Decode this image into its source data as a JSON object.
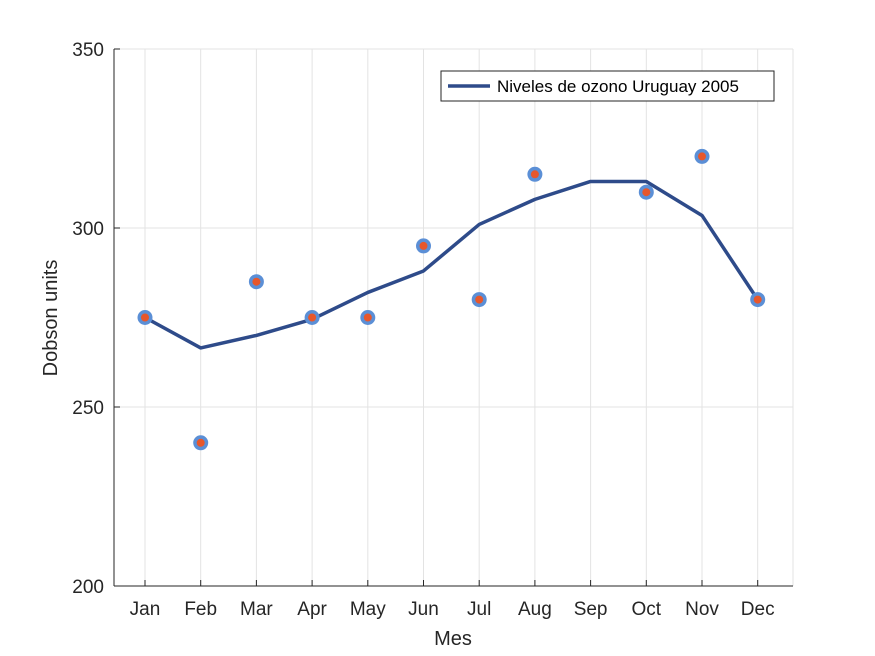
{
  "chart_data": {
    "type": "line",
    "xlabel": "Mes",
    "ylabel": "Dobson units",
    "categories": [
      "Jan",
      "Feb",
      "Mar",
      "Apr",
      "May",
      "Jun",
      "Jul",
      "Aug",
      "Sep",
      "Oct",
      "Nov",
      "Dec"
    ],
    "x_ticks": [
      "Jan",
      "Feb",
      "Mar",
      "Apr",
      "May",
      "Jun",
      "Jul",
      "Aug",
      "Sep",
      "Oct",
      "Nov",
      "Dec"
    ],
    "ylim": [
      200,
      350
    ],
    "yticks": [
      200,
      250,
      300,
      350
    ],
    "grid": true,
    "legend_position": "top-right",
    "series": [
      {
        "name": "Niveles de ozono Uruguay 2005",
        "kind": "line",
        "color": "#2e4b8a",
        "points": [
          {
            "x": "Jan",
            "y": 275
          },
          {
            "x": "Feb",
            "y": 266.5
          },
          {
            "x": "Mar",
            "y": 270
          },
          {
            "x": "Apr",
            "y": 274.5
          },
          {
            "x": "May",
            "y": 282
          },
          {
            "x": "Jun",
            "y": 288
          },
          {
            "x": "Jul",
            "y": 301
          },
          {
            "x": "Aug",
            "y": 308
          },
          {
            "x": "Sep",
            "y": 313
          },
          {
            "x": "Oct",
            "y": 313
          },
          {
            "x": "Nov",
            "y": 303.5
          },
          {
            "x": "Dec",
            "y": 280
          }
        ]
      },
      {
        "kind": "scatter",
        "marker_fill": "#e8572b",
        "marker_edge": "#5b8fd6",
        "points": [
          {
            "x": "Jan",
            "y": 275
          },
          {
            "x": "Feb",
            "y": 240
          },
          {
            "x": "Mar",
            "y": 285
          },
          {
            "x": "Apr",
            "y": 275
          },
          {
            "x": "May",
            "y": 275
          },
          {
            "x": "Jun",
            "y": 295
          },
          {
            "x": "Jul",
            "y": 280
          },
          {
            "x": "Aug",
            "y": 315
          },
          {
            "x": "Oct",
            "y": 310
          },
          {
            "x": "Nov",
            "y": 320
          },
          {
            "x": "Dec",
            "y": 280
          }
        ]
      }
    ]
  }
}
